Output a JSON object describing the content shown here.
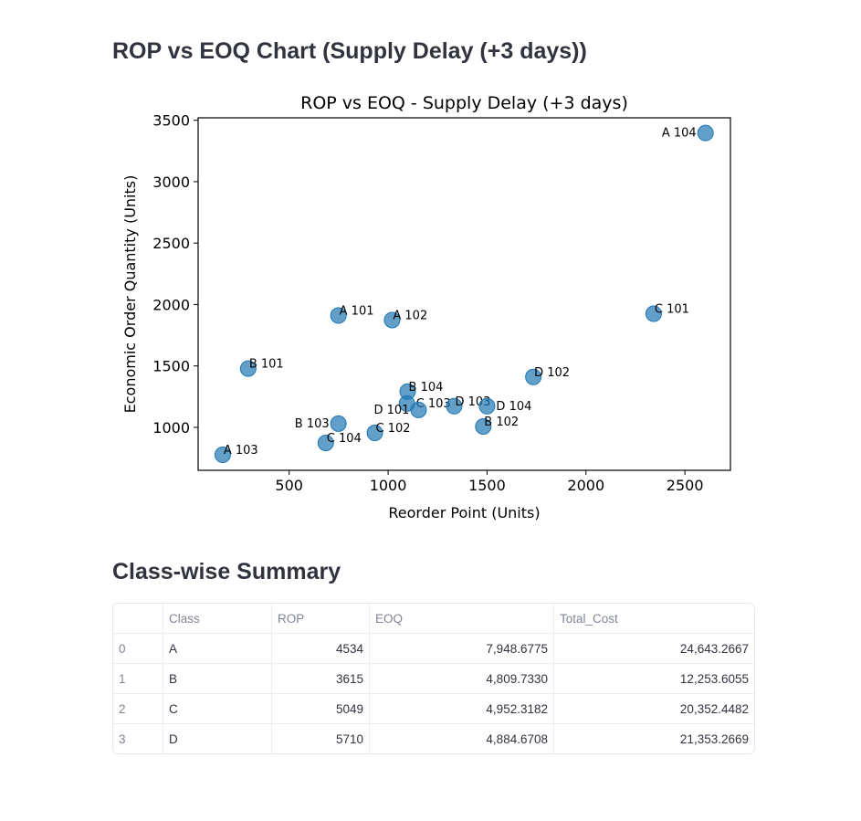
{
  "header": {
    "title": "ROP vs EOQ Chart (Supply Delay (+3 days))"
  },
  "chart_data": {
    "type": "scatter",
    "title": "ROP vs EOQ - Supply Delay (+3 days)",
    "xlabel": "Reorder Point (Units)",
    "ylabel": "Economic Order Quantity (Units)",
    "xlim": [
      40,
      2730
    ],
    "ylim": [
      650,
      3520
    ],
    "xticks": [
      500,
      1000,
      1500,
      2000,
      2500
    ],
    "yticks": [
      1000,
      1500,
      2000,
      2500,
      3000,
      3500
    ],
    "color": "#1f77b4",
    "points": [
      {
        "label": "A 104",
        "x": 2604,
        "y": 3396
      },
      {
        "label": "C 101",
        "x": 2342,
        "y": 1925
      },
      {
        "label": "A 101",
        "x": 749,
        "y": 1910
      },
      {
        "label": "A 102",
        "x": 1020,
        "y": 1873
      },
      {
        "label": "B 101",
        "x": 293,
        "y": 1478
      },
      {
        "label": "D 102",
        "x": 1734,
        "y": 1410
      },
      {
        "label": "B 104",
        "x": 1099,
        "y": 1291
      },
      {
        "label": "C 103",
        "x": 1095,
        "y": 1194
      },
      {
        "label": "D 101",
        "x": 1154,
        "y": 1142
      },
      {
        "label": "D 103",
        "x": 1334,
        "y": 1172
      },
      {
        "label": "D 104",
        "x": 1500,
        "y": 1172
      },
      {
        "label": "B 102",
        "x": 1481,
        "y": 1007
      },
      {
        "label": "B 103",
        "x": 749,
        "y": 1030
      },
      {
        "label": "C 102",
        "x": 933,
        "y": 955
      },
      {
        "label": "C 104",
        "x": 685,
        "y": 873
      },
      {
        "label": "A 103",
        "x": 164,
        "y": 776
      }
    ]
  },
  "summary": {
    "title": "Class-wise Summary",
    "columns": [
      "",
      "Class",
      "ROP",
      "EOQ",
      "Total_Cost"
    ],
    "rows": [
      [
        "0",
        "A",
        "4534",
        "7,948.6775",
        "24,643.2667"
      ],
      [
        "1",
        "B",
        "3615",
        "4,809.7330",
        "12,253.6055"
      ],
      [
        "2",
        "C",
        "5049",
        "4,952.3182",
        "20,352.4482"
      ],
      [
        "3",
        "D",
        "5710",
        "4,884.6708",
        "21,353.2669"
      ]
    ]
  }
}
